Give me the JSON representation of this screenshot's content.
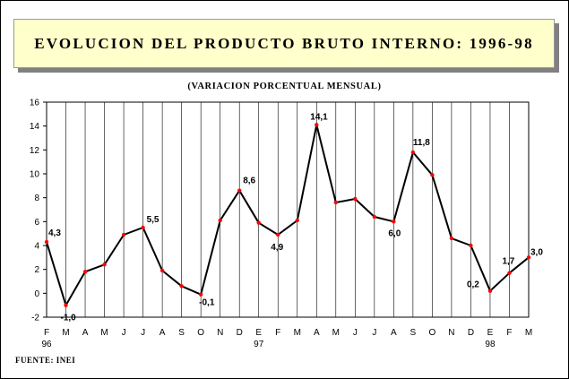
{
  "title": "EVOLUCION DEL PRODUCTO BRUTO INTERNO: 1996-98",
  "subtitle": "(VARIACION PORCENTUAL MENSUAL)",
  "source": "FUENTE: INEI",
  "chart_data": {
    "type": "line",
    "x": [
      "F",
      "M",
      "A",
      "M",
      "J",
      "J",
      "A",
      "S",
      "O",
      "N",
      "D",
      "E",
      "F",
      "M",
      "A",
      "M",
      "J",
      "J",
      "A",
      "S",
      "O",
      "N",
      "D",
      "E",
      "F",
      "M"
    ],
    "year_labels": [
      {
        "index": 0,
        "label": "96"
      },
      {
        "index": 11,
        "label": "97"
      },
      {
        "index": 23,
        "label": "98"
      }
    ],
    "series": [
      {
        "values": [
          4.3,
          -1.0,
          1.8,
          2.4,
          4.9,
          5.5,
          1.9,
          0.6,
          -0.1,
          6.1,
          8.6,
          5.9,
          4.9,
          6.1,
          14.1,
          7.6,
          7.9,
          6.4,
          6.0,
          11.8,
          9.9,
          4.6,
          4.0,
          0.2,
          1.7,
          3.0
        ]
      }
    ],
    "data_labels": [
      {
        "index": 0,
        "text": "4,3"
      },
      {
        "index": 1,
        "text": "-1,0"
      },
      {
        "index": 5,
        "text": "5,5"
      },
      {
        "index": 8,
        "text": "-0,1"
      },
      {
        "index": 10,
        "text": "8,6"
      },
      {
        "index": 12,
        "text": "4,9"
      },
      {
        "index": 14,
        "text": "14,1"
      },
      {
        "index": 18,
        "text": "6,0"
      },
      {
        "index": 19,
        "text": "11,8"
      },
      {
        "index": 23,
        "text": "0,2"
      },
      {
        "index": 24,
        "text": "1,7"
      },
      {
        "index": 25,
        "text": "3,0"
      }
    ],
    "yticks": [
      -2,
      0,
      2,
      4,
      6,
      8,
      10,
      12,
      14,
      16
    ],
    "ylim": [
      -2,
      16
    ],
    "grid": "vertical",
    "line_color": "#000000",
    "marker_color": "#ff0000"
  }
}
